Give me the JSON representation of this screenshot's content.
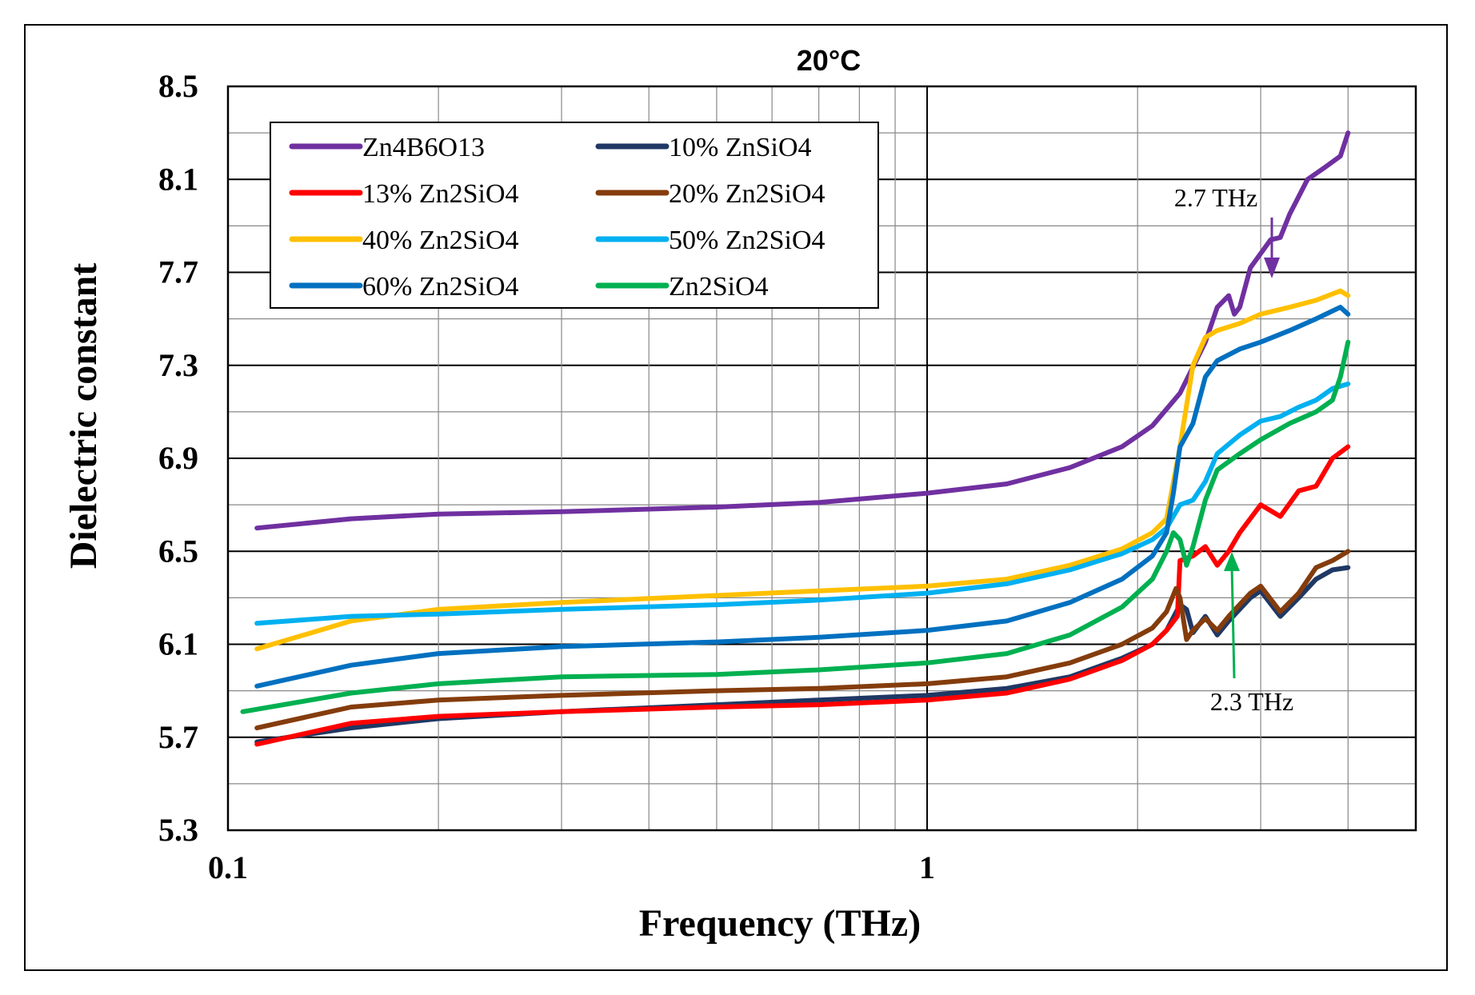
{
  "chart_data": {
    "type": "line",
    "title": "20°C",
    "xlabel": "Frequency (THz)",
    "ylabel": "Dielectric constant",
    "xscale": "log",
    "xlim": [
      0.1,
      5
    ],
    "ylim": [
      5.3,
      8.5
    ],
    "xticks": [
      0.1,
      1
    ],
    "xtick_labels": [
      "0.1",
      "1"
    ],
    "yticks": [
      5.3,
      5.7,
      6.1,
      6.5,
      6.9,
      7.3,
      7.7,
      8.1,
      8.5
    ],
    "ytick_labels": [
      "5.3",
      "5.7",
      "6.1",
      "6.5",
      "6.9",
      "7.3",
      "7.7",
      "8.1",
      "8.5"
    ],
    "grid": true,
    "legend_position": "top-left",
    "series": [
      {
        "name": "Zn4B6O13",
        "color": "#7030A0",
        "x": [
          0.11,
          0.15,
          0.2,
          0.3,
          0.5,
          0.7,
          1.0,
          1.3,
          1.6,
          1.9,
          2.1,
          2.3,
          2.5,
          2.6,
          2.7,
          2.75,
          2.8,
          2.9,
          3.1,
          3.2,
          3.3,
          3.5,
          3.7,
          3.9,
          4.0
        ],
        "y": [
          6.6,
          6.64,
          6.66,
          6.67,
          6.69,
          6.71,
          6.75,
          6.79,
          6.86,
          6.95,
          7.04,
          7.18,
          7.4,
          7.55,
          7.6,
          7.52,
          7.55,
          7.72,
          7.84,
          7.85,
          7.95,
          8.1,
          8.15,
          8.2,
          8.3
        ]
      },
      {
        "name": "10% ZnSiO4",
        "color": "#1F3864",
        "x": [
          0.11,
          0.15,
          0.2,
          0.3,
          0.5,
          0.7,
          1.0,
          1.3,
          1.6,
          1.9,
          2.1,
          2.2,
          2.3,
          2.35,
          2.4,
          2.5,
          2.6,
          2.7,
          2.9,
          3.0,
          3.2,
          3.4,
          3.6,
          3.8,
          4.0
        ],
        "y": [
          5.68,
          5.74,
          5.78,
          5.81,
          5.84,
          5.86,
          5.88,
          5.91,
          5.96,
          6.04,
          6.1,
          6.16,
          6.27,
          6.25,
          6.15,
          6.22,
          6.14,
          6.2,
          6.3,
          6.33,
          6.22,
          6.3,
          6.38,
          6.42,
          6.43
        ]
      },
      {
        "name": "13% Zn2SiO4",
        "color": "#FF0000",
        "x": [
          0.11,
          0.15,
          0.2,
          0.3,
          0.5,
          0.7,
          1.0,
          1.3,
          1.6,
          1.9,
          2.1,
          2.2,
          2.28,
          2.3,
          2.4,
          2.5,
          2.6,
          2.7,
          2.8,
          3.0,
          3.2,
          3.4,
          3.6,
          3.8,
          4.0
        ],
        "y": [
          5.67,
          5.76,
          5.79,
          5.81,
          5.83,
          5.84,
          5.86,
          5.89,
          5.95,
          6.03,
          6.1,
          6.16,
          6.22,
          6.46,
          6.48,
          6.52,
          6.44,
          6.5,
          6.58,
          6.7,
          6.65,
          6.76,
          6.78,
          6.9,
          6.95
        ]
      },
      {
        "name": "20% Zn2SiO4",
        "color": "#843C0C",
        "x": [
          0.11,
          0.15,
          0.2,
          0.3,
          0.5,
          0.7,
          1.0,
          1.3,
          1.6,
          1.9,
          2.1,
          2.2,
          2.27,
          2.3,
          2.35,
          2.4,
          2.5,
          2.6,
          2.7,
          2.9,
          3.0,
          3.2,
          3.4,
          3.6,
          3.8,
          4.0
        ],
        "y": [
          5.74,
          5.83,
          5.86,
          5.88,
          5.9,
          5.91,
          5.93,
          5.96,
          6.02,
          6.1,
          6.17,
          6.24,
          6.34,
          6.3,
          6.12,
          6.16,
          6.21,
          6.16,
          6.22,
          6.32,
          6.35,
          6.24,
          6.32,
          6.43,
          6.46,
          6.5
        ]
      },
      {
        "name": "40% Zn2SiO4",
        "color": "#FFC000",
        "x": [
          0.11,
          0.15,
          0.2,
          0.3,
          0.5,
          0.7,
          1.0,
          1.3,
          1.6,
          1.9,
          2.1,
          2.2,
          2.3,
          2.4,
          2.5,
          2.6,
          2.8,
          3.0,
          3.3,
          3.6,
          3.9,
          4.0
        ],
        "y": [
          6.08,
          6.2,
          6.25,
          6.28,
          6.31,
          6.33,
          6.35,
          6.38,
          6.44,
          6.51,
          6.58,
          6.64,
          6.95,
          7.3,
          7.42,
          7.45,
          7.48,
          7.52,
          7.55,
          7.58,
          7.62,
          7.6
        ]
      },
      {
        "name": "50% Zn2SiO4",
        "color": "#00B0F0",
        "x": [
          0.11,
          0.15,
          0.2,
          0.3,
          0.5,
          0.7,
          1.0,
          1.3,
          1.6,
          1.9,
          2.1,
          2.2,
          2.3,
          2.4,
          2.5,
          2.6,
          2.8,
          3.0,
          3.2,
          3.4,
          3.6,
          3.8,
          4.0
        ],
        "y": [
          6.19,
          6.22,
          6.23,
          6.25,
          6.27,
          6.29,
          6.32,
          6.36,
          6.42,
          6.49,
          6.55,
          6.6,
          6.7,
          6.72,
          6.8,
          6.92,
          7.0,
          7.06,
          7.08,
          7.12,
          7.15,
          7.2,
          7.22
        ]
      },
      {
        "name": "60% Zn2SiO4",
        "color": "#0070C0",
        "x": [
          0.11,
          0.15,
          0.2,
          0.3,
          0.5,
          0.7,
          1.0,
          1.3,
          1.6,
          1.9,
          2.1,
          2.2,
          2.25,
          2.3,
          2.4,
          2.5,
          2.6,
          2.8,
          3.0,
          3.3,
          3.6,
          3.9,
          4.0
        ],
        "y": [
          5.92,
          6.01,
          6.06,
          6.09,
          6.11,
          6.13,
          6.16,
          6.2,
          6.28,
          6.38,
          6.48,
          6.58,
          6.75,
          6.95,
          7.05,
          7.25,
          7.32,
          7.37,
          7.4,
          7.45,
          7.5,
          7.55,
          7.52
        ]
      },
      {
        "name": "Zn2SiO4",
        "color": "#00B050",
        "x": [
          0.105,
          0.15,
          0.2,
          0.3,
          0.5,
          0.7,
          1.0,
          1.3,
          1.6,
          1.9,
          2.1,
          2.2,
          2.25,
          2.3,
          2.35,
          2.4,
          2.5,
          2.6,
          2.8,
          3.0,
          3.3,
          3.6,
          3.8,
          3.9,
          4.0
        ],
        "y": [
          5.81,
          5.89,
          5.93,
          5.96,
          5.97,
          5.99,
          6.02,
          6.06,
          6.14,
          6.26,
          6.38,
          6.5,
          6.58,
          6.55,
          6.44,
          6.52,
          6.72,
          6.85,
          6.92,
          6.98,
          7.05,
          7.1,
          7.15,
          7.25,
          7.4
        ]
      }
    ],
    "annotations": [
      {
        "text": "2.7 THz",
        "x": 2.7,
        "y": 7.6,
        "color": "#7030A0"
      },
      {
        "text": "2.3 THz",
        "x": 2.3,
        "y": 6.46,
        "color": "#00B050"
      }
    ]
  }
}
